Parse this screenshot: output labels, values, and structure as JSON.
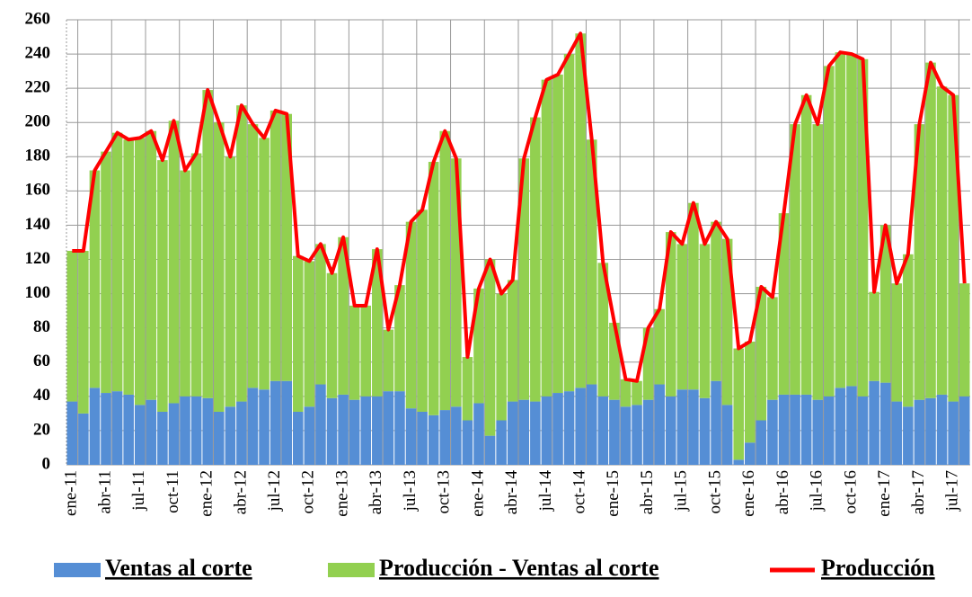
{
  "chart_data": {
    "type": "stacked-bar-line",
    "categories": [
      "ene-11",
      null,
      null,
      "abr-11",
      null,
      null,
      "jul-11",
      null,
      null,
      "oct-11",
      null,
      null,
      "ene-12",
      null,
      null,
      "abr-12",
      null,
      null,
      "jul-12",
      null,
      null,
      "oct-12",
      null,
      null,
      "ene-13",
      null,
      null,
      "abr-13",
      null,
      null,
      "jul-13",
      null,
      null,
      "oct-13",
      null,
      null,
      "ene-14",
      null,
      null,
      "abr-14",
      null,
      null,
      "jul-14",
      null,
      null,
      "oct-14",
      null,
      null,
      "ene-15",
      null,
      null,
      "abr-15",
      null,
      null,
      "jul-15",
      null,
      null,
      "oct-15",
      null,
      null,
      "ene-16",
      null,
      null,
      "abr-16",
      null,
      null,
      "jul-16",
      null,
      null,
      "oct-16",
      null,
      null,
      "ene-17",
      null,
      null,
      "abr-17",
      null,
      null,
      "jul-17",
      null
    ],
    "series": [
      {
        "name": "Ventas al corte",
        "color": "#558ed5",
        "values": [
          37,
          30,
          45,
          42,
          43,
          41,
          35,
          38,
          31,
          36,
          40,
          40,
          39,
          31,
          34,
          37,
          45,
          44,
          49,
          49,
          31,
          34,
          47,
          39,
          41,
          38,
          40,
          40,
          43,
          43,
          33,
          31,
          29,
          32,
          34,
          26,
          36,
          17,
          26,
          37,
          38,
          37,
          40,
          42,
          43,
          45,
          47,
          40,
          38,
          34,
          35,
          38,
          47,
          40,
          44,
          44,
          39,
          49,
          35,
          3,
          13,
          26,
          38,
          41,
          41,
          41,
          38,
          40,
          45,
          46,
          40,
          49,
          48,
          37,
          34,
          38,
          39,
          41,
          37,
          40
        ]
      },
      {
        "name": "Producción - Ventas al corte",
        "color": "#92d050",
        "values": [
          88,
          95,
          127,
          141,
          151,
          149,
          156,
          157,
          147,
          165,
          132,
          142,
          180,
          169,
          146,
          173,
          154,
          147,
          158,
          156,
          91,
          85,
          82,
          73,
          92,
          55,
          53,
          86,
          36,
          62,
          109,
          118,
          148,
          163,
          145,
          37,
          67,
          103,
          74,
          71,
          141,
          166,
          185,
          186,
          197,
          207,
          143,
          78,
          45,
          16,
          14,
          42,
          44,
          96,
          85,
          109,
          90,
          93,
          97,
          65,
          59,
          78,
          60,
          106,
          158,
          175,
          161,
          193,
          196,
          194,
          197,
          52,
          92,
          69,
          89,
          161,
          196,
          180,
          179,
          66
        ]
      },
      {
        "name": "Producción",
        "color": "#ff0000",
        "type": "line",
        "values": [
          125,
          125,
          172,
          183,
          194,
          190,
          191,
          195,
          178,
          201,
          172,
          182,
          219,
          200,
          180,
          210,
          199,
          191,
          207,
          205,
          122,
          119,
          129,
          112,
          133,
          93,
          93,
          126,
          79,
          105,
          142,
          149,
          177,
          195,
          179,
          63,
          103,
          120,
          100,
          108,
          179,
          203,
          225,
          228,
          240,
          252,
          190,
          118,
          83,
          50,
          49,
          80,
          91,
          136,
          129,
          153,
          129,
          142,
          132,
          68,
          72,
          104,
          98,
          147,
          199,
          216,
          199,
          233,
          241,
          240,
          237,
          101,
          140,
          106,
          123,
          199,
          235,
          221,
          216,
          106
        ]
      }
    ],
    "ylim": [
      0,
      260
    ],
    "yticks": [
      0,
      20,
      40,
      60,
      80,
      100,
      120,
      140,
      160,
      180,
      200,
      220,
      240,
      260
    ],
    "grid": true,
    "legend": "bottom"
  }
}
